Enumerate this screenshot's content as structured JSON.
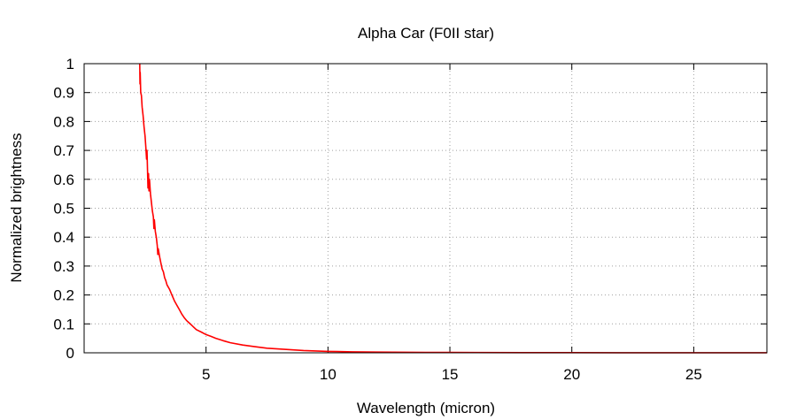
{
  "chart_data": {
    "type": "line",
    "title": "Alpha Car (F0II star)",
    "xlabel": "Wavelength (micron)",
    "ylabel": "Normalized brightness",
    "xlim": [
      0,
      28
    ],
    "ylim": [
      0,
      1
    ],
    "x_ticks": [
      5,
      10,
      15,
      20,
      25
    ],
    "x_tick_labels": [
      "5",
      "10",
      "15",
      "20",
      "25"
    ],
    "y_ticks": [
      0,
      0.1,
      0.2,
      0.3,
      0.4,
      0.5,
      0.6,
      0.7,
      0.8,
      0.9,
      1
    ],
    "y_tick_labels": [
      "0",
      "0.1",
      "0.2",
      "0.3",
      "0.4",
      "0.5",
      "0.6",
      "0.7",
      "0.8",
      "0.9",
      "1"
    ],
    "grid": true,
    "legend": "none",
    "series": [
      {
        "color": "#ff0000",
        "points": [
          [
            2.28,
            1.0
          ],
          [
            2.29,
            0.93
          ],
          [
            2.3,
            0.97
          ],
          [
            2.32,
            0.9
          ],
          [
            2.35,
            0.89
          ],
          [
            2.38,
            0.85
          ],
          [
            2.42,
            0.82
          ],
          [
            2.46,
            0.78
          ],
          [
            2.5,
            0.75
          ],
          [
            2.53,
            0.71
          ],
          [
            2.56,
            0.67
          ],
          [
            2.58,
            0.7
          ],
          [
            2.6,
            0.63
          ],
          [
            2.62,
            0.57
          ],
          [
            2.64,
            0.62
          ],
          [
            2.66,
            0.56
          ],
          [
            2.68,
            0.6
          ],
          [
            2.72,
            0.55
          ],
          [
            2.76,
            0.52
          ],
          [
            2.8,
            0.49
          ],
          [
            2.84,
            0.47
          ],
          [
            2.86,
            0.43
          ],
          [
            2.88,
            0.46
          ],
          [
            2.92,
            0.42
          ],
          [
            2.96,
            0.4
          ],
          [
            3.0,
            0.37
          ],
          [
            3.02,
            0.34
          ],
          [
            3.04,
            0.36
          ],
          [
            3.1,
            0.33
          ],
          [
            3.15,
            0.31
          ],
          [
            3.2,
            0.29
          ],
          [
            3.25,
            0.28
          ],
          [
            3.3,
            0.26
          ],
          [
            3.35,
            0.25
          ],
          [
            3.4,
            0.235
          ],
          [
            3.5,
            0.22
          ],
          [
            3.6,
            0.2
          ],
          [
            3.7,
            0.18
          ],
          [
            3.8,
            0.165
          ],
          [
            3.9,
            0.15
          ],
          [
            4.0,
            0.135
          ],
          [
            4.1,
            0.122
          ],
          [
            4.2,
            0.112
          ],
          [
            4.3,
            0.104
          ],
          [
            4.4,
            0.096
          ],
          [
            4.5,
            0.088
          ],
          [
            4.6,
            0.08
          ],
          [
            4.8,
            0.072
          ],
          [
            5.0,
            0.063
          ],
          [
            5.2,
            0.057
          ],
          [
            5.4,
            0.05
          ],
          [
            5.7,
            0.042
          ],
          [
            6.0,
            0.035
          ],
          [
            6.5,
            0.027
          ],
          [
            7.0,
            0.021
          ],
          [
            7.5,
            0.016
          ],
          [
            8.0,
            0.013
          ],
          [
            9.0,
            0.008
          ],
          [
            10.0,
            0.005
          ],
          [
            11.0,
            0.0035
          ],
          [
            12.0,
            0.0025
          ],
          [
            14.0,
            0.0015
          ],
          [
            16.0,
            0.001
          ],
          [
            18.0,
            0.0007
          ],
          [
            20.0,
            0.0005
          ],
          [
            22.0,
            0.0004
          ],
          [
            25.0,
            0.0003
          ],
          [
            28.0,
            0.0002
          ]
        ]
      }
    ]
  }
}
